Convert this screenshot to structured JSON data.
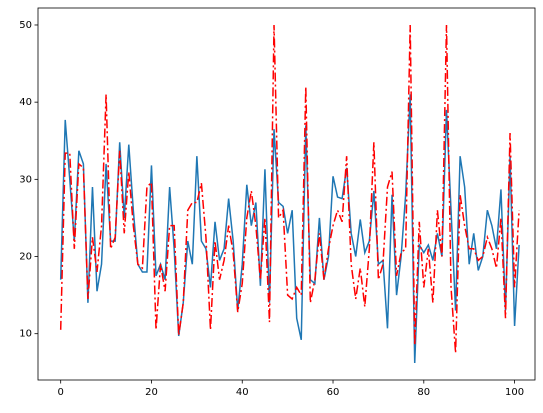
{
  "chart_data": {
    "type": "line",
    "x": [
      0,
      1,
      2,
      3,
      4,
      5,
      6,
      7,
      8,
      9,
      10,
      11,
      12,
      13,
      14,
      15,
      16,
      17,
      18,
      19,
      20,
      21,
      22,
      23,
      24,
      25,
      26,
      27,
      28,
      29,
      30,
      31,
      32,
      33,
      34,
      35,
      36,
      37,
      38,
      39,
      40,
      41,
      42,
      43,
      44,
      45,
      46,
      47,
      48,
      49,
      50,
      51,
      52,
      53,
      54,
      55,
      56,
      57,
      58,
      59,
      60,
      61,
      62,
      63,
      64,
      65,
      66,
      67,
      68,
      69,
      70,
      71,
      72,
      73,
      74,
      75,
      76,
      77,
      78,
      79,
      80,
      81,
      82,
      83,
      84,
      85,
      86,
      87,
      88,
      89,
      90,
      91,
      92,
      93,
      94,
      95,
      96,
      97,
      98,
      99,
      100,
      101
    ],
    "series": [
      {
        "color": "#1f77b4",
        "linestyle": "solid",
        "values": [
          17,
          37.7,
          30,
          22,
          33.7,
          32,
          14,
          29,
          15.5,
          19,
          32,
          22,
          22,
          34.8,
          25,
          34.5,
          26,
          19,
          18,
          18,
          31.8,
          17.5,
          19,
          17,
          29,
          21,
          9.7,
          14,
          22,
          19,
          33,
          22,
          21,
          16,
          24.5,
          19.5,
          21,
          27.5,
          22,
          13,
          19,
          29.3,
          24,
          27,
          16.2,
          31.3,
          14,
          36.5,
          27,
          26.5,
          23,
          26,
          12,
          9.2,
          37,
          17,
          16.5,
          25,
          17,
          20,
          30.4,
          27.7,
          27.5,
          31.5,
          23,
          20,
          24.8,
          20.5,
          22,
          28.5,
          19,
          19.5,
          10.7,
          28,
          15,
          20,
          28,
          41,
          6.2,
          21.5,
          20.5,
          21.5,
          19.5,
          23,
          20,
          39,
          26,
          13,
          33,
          29,
          19,
          23,
          18.2,
          20,
          26,
          24,
          21,
          28.7,
          13,
          33,
          11,
          21.5
        ]
      },
      {
        "color": "#ff0000",
        "linestyle": "dashdot",
        "values": [
          10.5,
          33.4,
          33.4,
          21,
          32,
          31.5,
          14.5,
          22.5,
          18,
          24,
          41,
          21,
          22.5,
          33.7,
          23,
          31,
          24,
          19,
          18.5,
          29,
          29.6,
          10.5,
          19,
          15.5,
          24,
          24,
          9.8,
          14,
          26,
          27,
          27,
          29.5,
          22.5,
          10.5,
          22,
          17,
          19.5,
          24,
          20.5,
          12.8,
          16.5,
          25,
          28.5,
          24,
          17,
          25,
          11.5,
          50,
          25,
          26,
          15,
          14.5,
          16,
          15,
          42,
          14,
          17,
          23,
          17,
          21,
          24,
          26,
          24.5,
          33,
          19,
          14.5,
          18.5,
          13.5,
          21,
          34.8,
          17,
          19,
          29,
          31,
          17.5,
          20.5,
          21,
          50,
          8.5,
          24.5,
          16,
          21,
          14,
          26,
          20,
          50,
          16,
          7.5,
          28,
          24,
          21,
          21,
          19.5,
          20,
          22.5,
          21,
          18.5,
          25,
          12,
          36,
          16,
          26
        ]
      }
    ],
    "xlim": [
      -5,
      104.5
    ],
    "xticks": [
      0,
      20,
      40,
      60,
      80,
      100
    ],
    "ylim": [
      4.0,
      52.2
    ],
    "yticks": [
      10,
      20,
      30,
      40,
      50
    ],
    "grid": false
  }
}
